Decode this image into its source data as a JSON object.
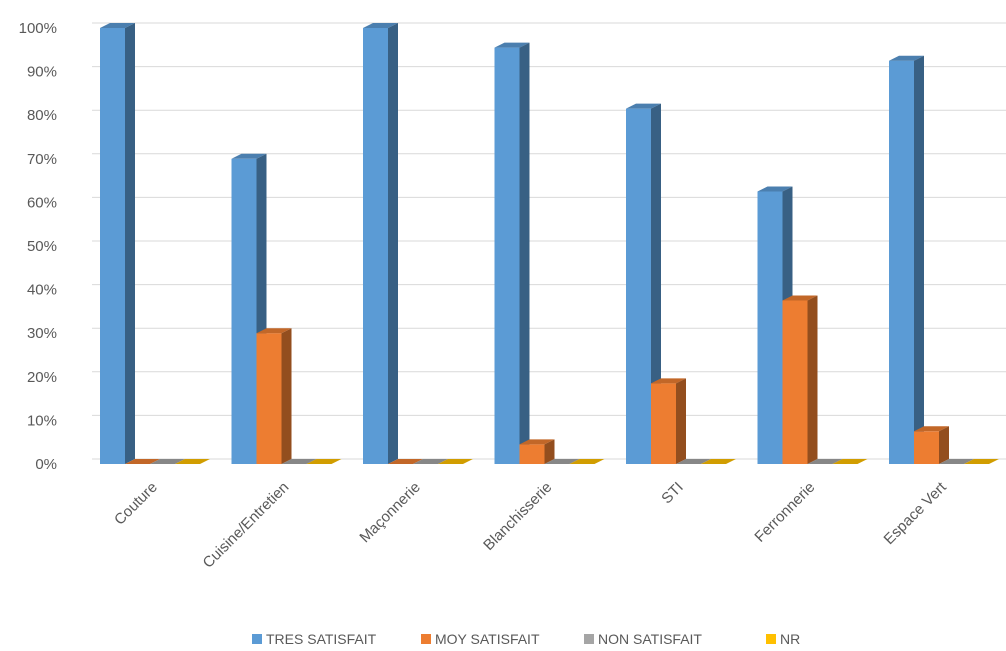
{
  "chart_data": {
    "type": "bar",
    "style": "3d-clustered-column",
    "categories": [
      "Couture",
      "Cuisine/Entretien",
      "Maçonnerie",
      "Blanchisserie",
      "STI",
      "Ferronnerie",
      "Espace Vert"
    ],
    "series": [
      {
        "name": "TRES SATISFAIT",
        "color": "#5B9BD5",
        "values": [
          100,
          70,
          100,
          95.5,
          81.5,
          62.5,
          92.5
        ]
      },
      {
        "name": "MOY SATISFAIT",
        "color": "#ED7D31",
        "values": [
          0,
          30,
          0,
          4.5,
          18.5,
          37.5,
          7.5
        ]
      },
      {
        "name": "NON SATISFAIT",
        "color": "#A5A5A5",
        "values": [
          0,
          0,
          0,
          0,
          0,
          0,
          0
        ]
      },
      {
        "name": "NR",
        "color": "#FFC000",
        "values": [
          0,
          0,
          0,
          0,
          0,
          0,
          0
        ]
      }
    ],
    "y_ticks": [
      "0%",
      "10%",
      "20%",
      "30%",
      "40%",
      "50%",
      "60%",
      "70%",
      "80%",
      "90%",
      "100%"
    ],
    "ylim": [
      0,
      100
    ],
    "grid": true,
    "legend_position": "bottom"
  }
}
